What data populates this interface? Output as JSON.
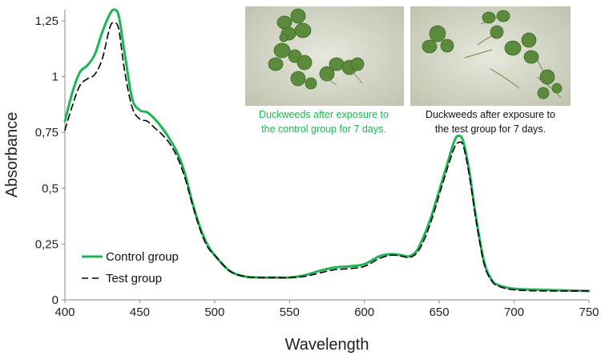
{
  "chart_data": {
    "type": "line",
    "xlabel": "Wavelength",
    "ylabel": "Absorbance",
    "xlim": [
      400,
      750
    ],
    "ylim": [
      0,
      1.3
    ],
    "x_ticks": [
      400,
      450,
      500,
      550,
      600,
      650,
      700,
      750
    ],
    "x_tick_labels": [
      "400",
      "450",
      "500",
      "550",
      "600",
      "650",
      "700",
      "750"
    ],
    "y_ticks": [
      0,
      0.25,
      0.5,
      0.75,
      1,
      1.25
    ],
    "y_tick_labels": [
      "0",
      "0,25",
      "0,5",
      "0,75",
      "1",
      "1,25"
    ],
    "grid": false,
    "legend_position": "bottom-left",
    "x": [
      400,
      405,
      410,
      415,
      420,
      425,
      430,
      433,
      436,
      440,
      445,
      450,
      455,
      460,
      465,
      470,
      475,
      480,
      485,
      490,
      495,
      500,
      510,
      520,
      530,
      540,
      550,
      560,
      570,
      580,
      590,
      600,
      610,
      618,
      625,
      630,
      635,
      640,
      645,
      650,
      655,
      660,
      663,
      666,
      670,
      675,
      680,
      685,
      690,
      700,
      720,
      750
    ],
    "series": [
      {
        "name": "Control group",
        "color": "#1db554",
        "style": "solid",
        "values": [
          0.8,
          0.93,
          1.02,
          1.05,
          1.1,
          1.2,
          1.28,
          1.3,
          1.27,
          1.1,
          0.9,
          0.85,
          0.84,
          0.81,
          0.77,
          0.72,
          0.66,
          0.57,
          0.44,
          0.33,
          0.25,
          0.2,
          0.13,
          0.105,
          0.1,
          0.1,
          0.1,
          0.11,
          0.13,
          0.145,
          0.15,
          0.16,
          0.195,
          0.205,
          0.2,
          0.195,
          0.22,
          0.29,
          0.38,
          0.49,
          0.6,
          0.71,
          0.735,
          0.71,
          0.58,
          0.35,
          0.17,
          0.09,
          0.065,
          0.05,
          0.045,
          0.04
        ]
      },
      {
        "name": "Test group",
        "color": "#000000",
        "style": "dashed",
        "values": [
          0.76,
          0.87,
          0.96,
          0.99,
          1.01,
          1.08,
          1.22,
          1.24,
          1.21,
          1.02,
          0.86,
          0.81,
          0.8,
          0.77,
          0.74,
          0.7,
          0.64,
          0.55,
          0.43,
          0.32,
          0.24,
          0.2,
          0.13,
          0.105,
          0.1,
          0.1,
          0.1,
          0.105,
          0.12,
          0.135,
          0.14,
          0.15,
          0.185,
          0.2,
          0.195,
          0.19,
          0.21,
          0.27,
          0.36,
          0.47,
          0.58,
          0.68,
          0.705,
          0.69,
          0.56,
          0.34,
          0.16,
          0.085,
          0.06,
          0.045,
          0.04,
          0.04
        ]
      }
    ]
  },
  "photos": {
    "control": {
      "caption_line1": "Duckweeds after exposure to",
      "caption_line2": "the control group for 7 days.",
      "caption_color": "#1db554"
    },
    "test": {
      "caption_line1": "Duckweeds after exposure to",
      "caption_line2": "the test group for 7 days.",
      "caption_color": "#111111"
    }
  }
}
